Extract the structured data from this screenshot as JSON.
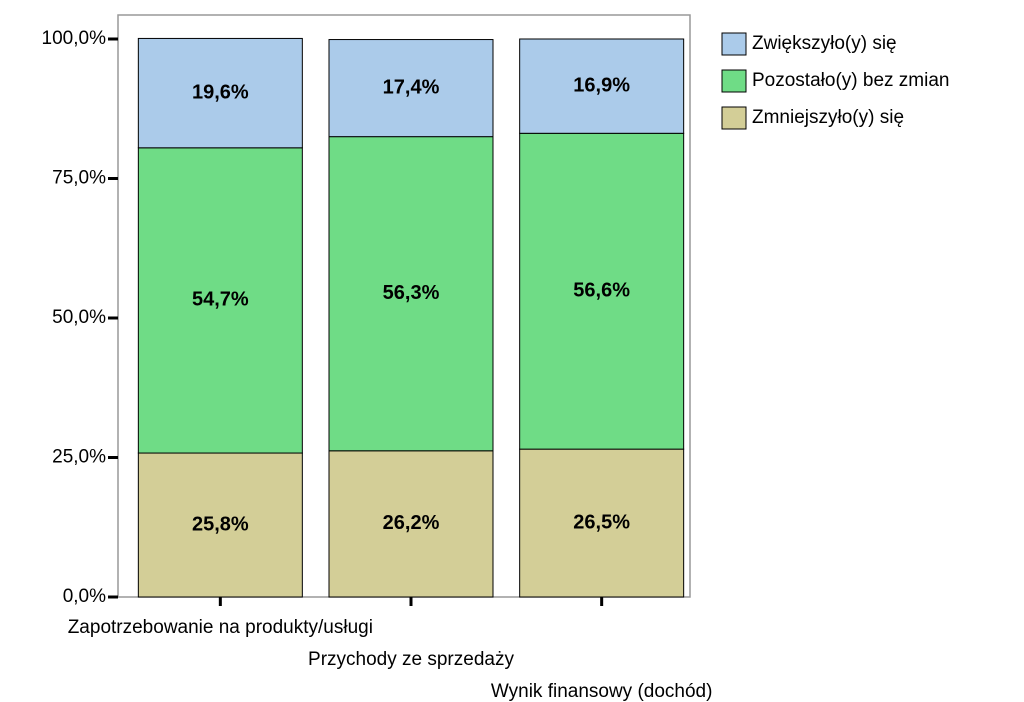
{
  "chart_data": {
    "type": "stacked_bar",
    "categories": [
      "Zapotrzebowanie na produkty/usługi",
      "Przychody ze sprzedaży",
      "Wynik finansowy (dochód)"
    ],
    "series": [
      {
        "name": "Zmniejszyło(y) się",
        "color": "#d3ce97",
        "values": [
          25.8,
          26.2,
          26.5
        ],
        "value_labels": [
          "25,8%",
          "26,2%",
          "26,5%"
        ]
      },
      {
        "name": "Pozostało(y) bez zmian",
        "color": "#6fdc86",
        "values": [
          54.7,
          56.3,
          56.6
        ],
        "value_labels": [
          "54,7%",
          "56,3%",
          "56,6%"
        ]
      },
      {
        "name": "Zwiększyło(y) się",
        "color": "#abcbea",
        "values": [
          19.6,
          17.4,
          16.9
        ],
        "value_labels": [
          "19,6%",
          "17,4%",
          "16,9%"
        ]
      }
    ],
    "ylim": [
      0,
      104.3
    ],
    "yticks": [
      {
        "value": 0,
        "label": "0,0%"
      },
      {
        "value": 25,
        "label": "25,0%"
      },
      {
        "value": 50,
        "label": "50,0%"
      },
      {
        "value": 75,
        "label": "75,0%"
      },
      {
        "value": 100,
        "label": "100,0%"
      }
    ],
    "legend": "right"
  }
}
